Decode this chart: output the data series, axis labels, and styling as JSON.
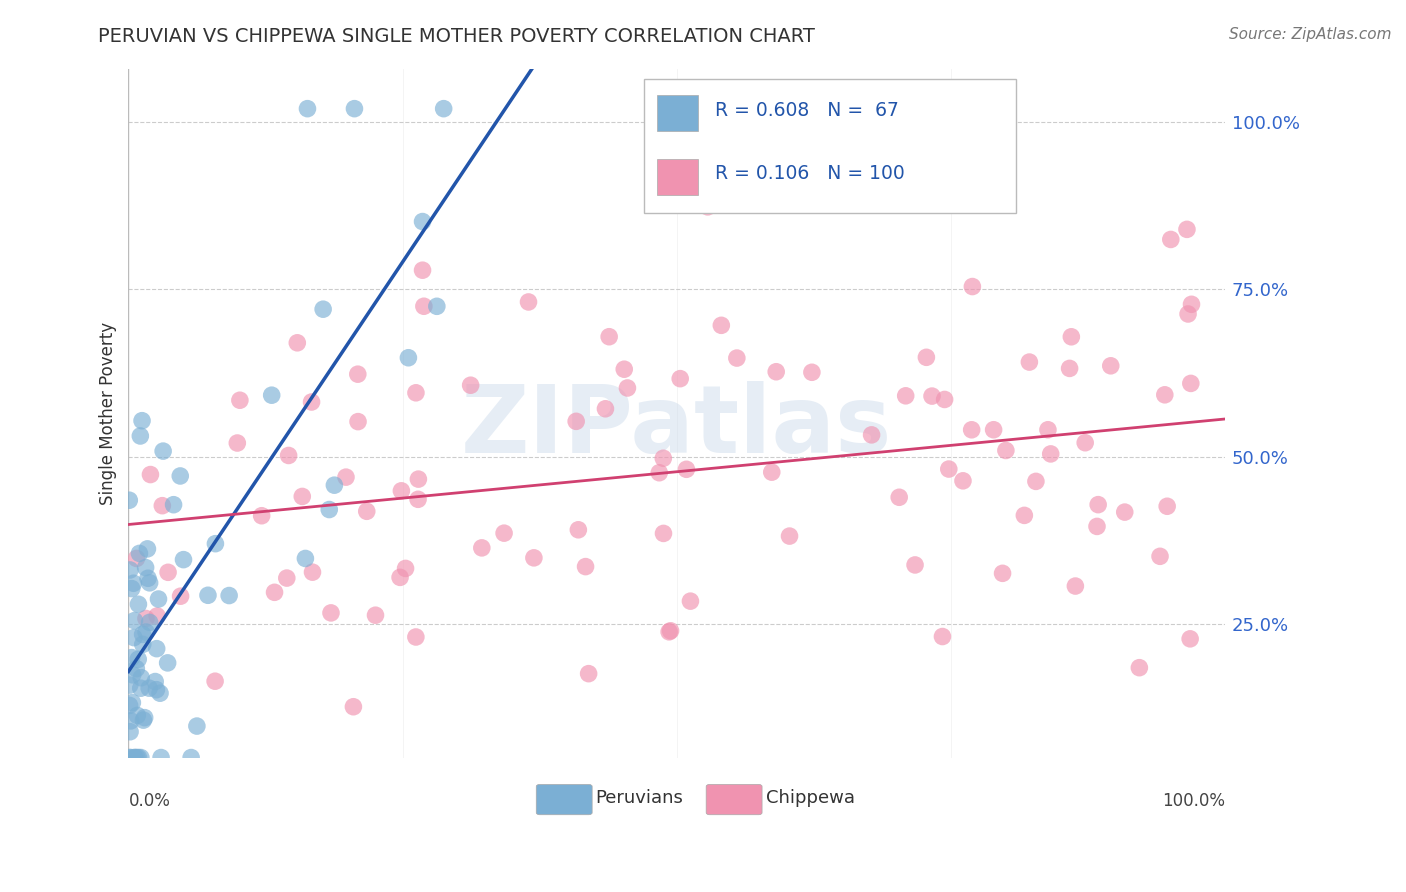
{
  "title": "PERUVIAN VS CHIPPEWA SINGLE MOTHER POVERTY CORRELATION CHART",
  "source": "Source: ZipAtlas.com",
  "ylabel": "Single Mother Poverty",
  "r1": 0.608,
  "n1": 67,
  "r2": 0.106,
  "n2": 100,
  "color1": "#7bafd4",
  "color2": "#f093b0",
  "line_color1": "#2255aa",
  "line_color2": "#d04070",
  "legend_label1": "Peruvians",
  "legend_label2": "Chippewa",
  "watermark": "ZIPatlas",
  "background": "#ffffff",
  "ytick_values": [
    0.25,
    0.5,
    0.75,
    1.0
  ],
  "ytick_labels": [
    "25.0%",
    "50.0%",
    "75.0%",
    "100.0%"
  ],
  "xlim": [
    0.0,
    1.0
  ],
  "ylim": [
    0.05,
    1.08
  ]
}
